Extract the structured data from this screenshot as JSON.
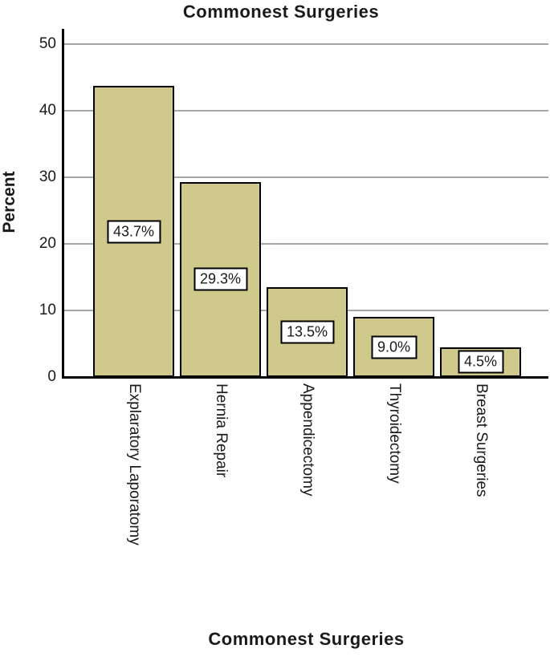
{
  "title": "Commonest Surgeries",
  "chart_data": {
    "type": "bar",
    "title": "Commonest Surgeries",
    "xlabel": "Commonest Surgeries",
    "ylabel": "Percent",
    "categories": [
      "Explaratory Laporatomy",
      "Hernia Repair",
      "Appendicectomy",
      "Thyroidectomy",
      "Breast Surgeries"
    ],
    "values": [
      43.7,
      29.3,
      13.5,
      9.0,
      4.5
    ],
    "value_labels": [
      "43.7%",
      "29.3%",
      "13.5%",
      "9.0%",
      "4.5%"
    ],
    "ylim": [
      0,
      52
    ],
    "yticks": [
      0,
      10,
      20,
      30,
      40,
      50
    ],
    "grid": true,
    "legend": "none",
    "bar_color": "#cfc98c",
    "bar_border_color": "#000000",
    "value_box_bg": "#ffffff",
    "gridline_color": "#a6a6a6",
    "axis_color": "#000000"
  }
}
